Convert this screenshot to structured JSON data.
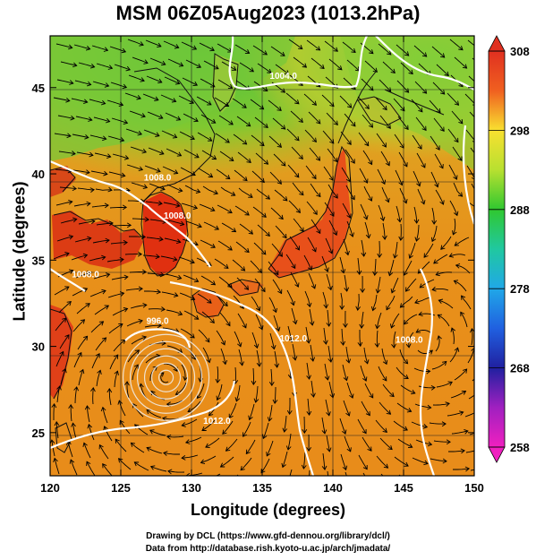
{
  "title": "MSM 06Z05Aug2023 (1013.2hPa)",
  "xlabel": "Longitude (degrees)",
  "ylabel": "Latitude  (degrees)",
  "x_ticks": [
    "120",
    "125",
    "130",
    "135",
    "140",
    "145",
    "150"
  ],
  "y_ticks": [
    "25",
    "30",
    "35",
    "40",
    "45"
  ],
  "x_tick_values": [
    120,
    125,
    130,
    135,
    140,
    145,
    150
  ],
  "y_tick_values": [
    25,
    30,
    35,
    40,
    45
  ],
  "x_range": [
    120,
    150
  ],
  "y_range": [
    22.5,
    48
  ],
  "colorbar": {
    "labels": [
      "308",
      "298",
      "288",
      "278",
      "268",
      "258"
    ],
    "values": [
      308,
      298,
      288,
      278,
      268,
      258
    ],
    "range": [
      258,
      308
    ]
  },
  "contour_labels": [
    {
      "text": "1004.0",
      "lon": 136.5,
      "lat": 45.5
    },
    {
      "text": "1008.0",
      "lon": 127.6,
      "lat": 39.6
    },
    {
      "text": "1008.0",
      "lon": 122.5,
      "lat": 34.0
    },
    {
      "text": "1008.0",
      "lon": 129.0,
      "lat": 37.4
    },
    {
      "text": "996.0",
      "lon": 127.6,
      "lat": 31.3
    },
    {
      "text": "1012.0",
      "lon": 131.8,
      "lat": 25.5
    },
    {
      "text": "1012.0",
      "lon": 137.2,
      "lat": 30.3
    },
    {
      "text": "1008.0",
      "lon": 145.4,
      "lat": 30.2
    }
  ],
  "footer": {
    "line1": "Drawing by DCL (https://www.gfd-dennou.org/library/dcl/)",
    "line2": "Data from http://database.rish.kyoto-u.ac.jp/arch/jmadata/"
  },
  "colors": {
    "land_hot": "#e03010",
    "sea_warm": "#e8901a",
    "north_green": "#60c030",
    "contour": "#ffffff"
  }
}
